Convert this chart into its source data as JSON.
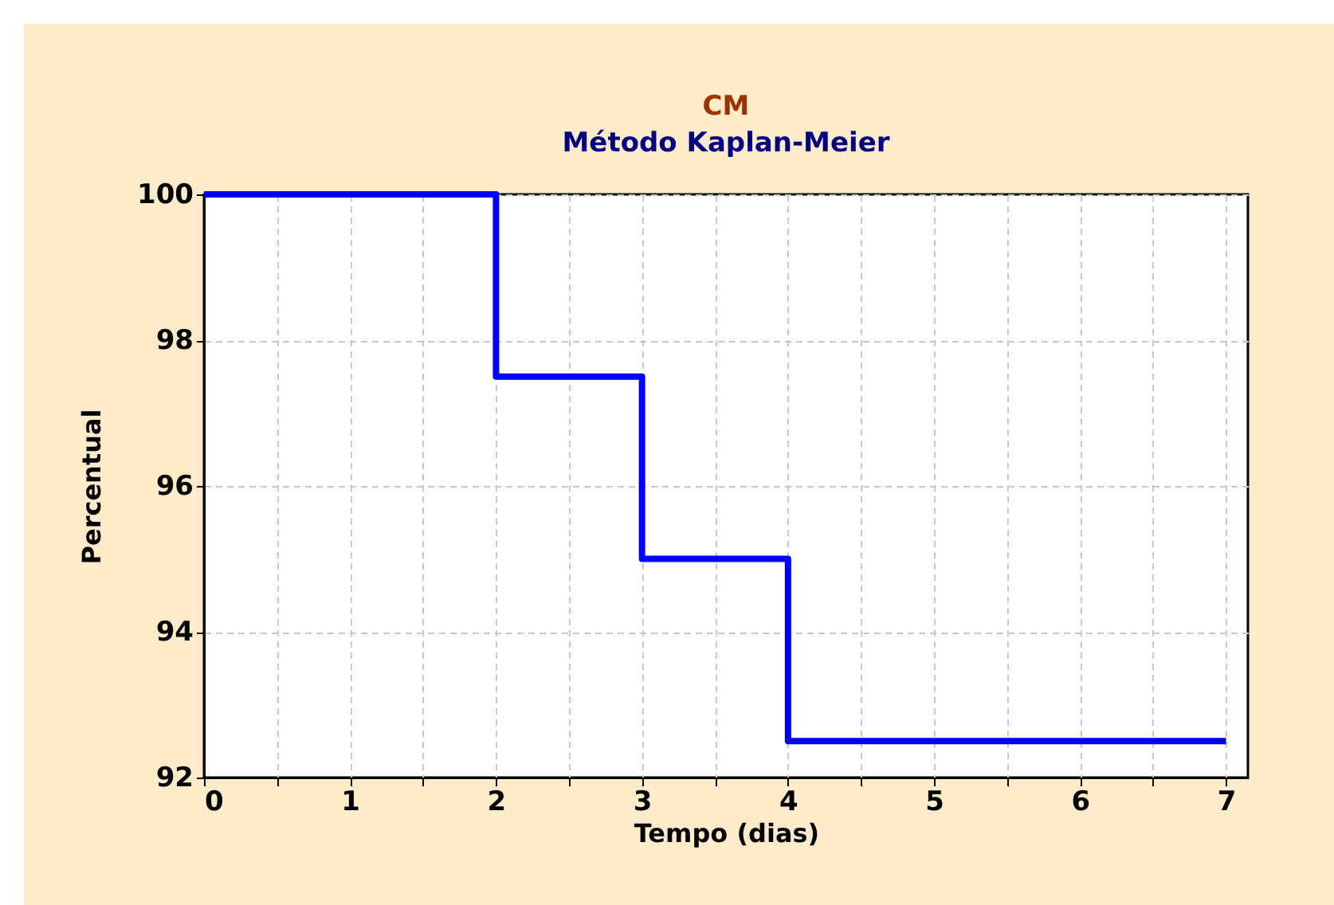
{
  "chart_data": {
    "type": "step",
    "title": "CM",
    "subtitle": "Método Kaplan-Meier",
    "xlabel": "Tempo (dias)",
    "ylabel": "Percentual",
    "x": [
      0,
      2,
      3,
      4,
      7
    ],
    "series": [
      {
        "color": "#0000ff",
        "values": [
          100,
          97.5,
          95,
          92.5,
          92.5
        ]
      }
    ],
    "xlim": [
      0,
      7.15
    ],
    "ylim": [
      92,
      100
    ],
    "xticks": [
      0,
      {
        "value": 0.5,
        "label": null
      },
      1,
      {
        "value": 1.5,
        "label": null
      },
      2,
      {
        "value": 2.5,
        "label": null
      },
      3,
      {
        "value": 3.5,
        "label": null
      },
      4,
      {
        "value": 4.5,
        "label": null
      },
      5,
      {
        "value": 5.5,
        "label": null
      },
      6,
      {
        "value": 6.5,
        "label": null
      },
      7
    ],
    "yticks": [
      92,
      94,
      96,
      98,
      100
    ],
    "grid": true
  }
}
